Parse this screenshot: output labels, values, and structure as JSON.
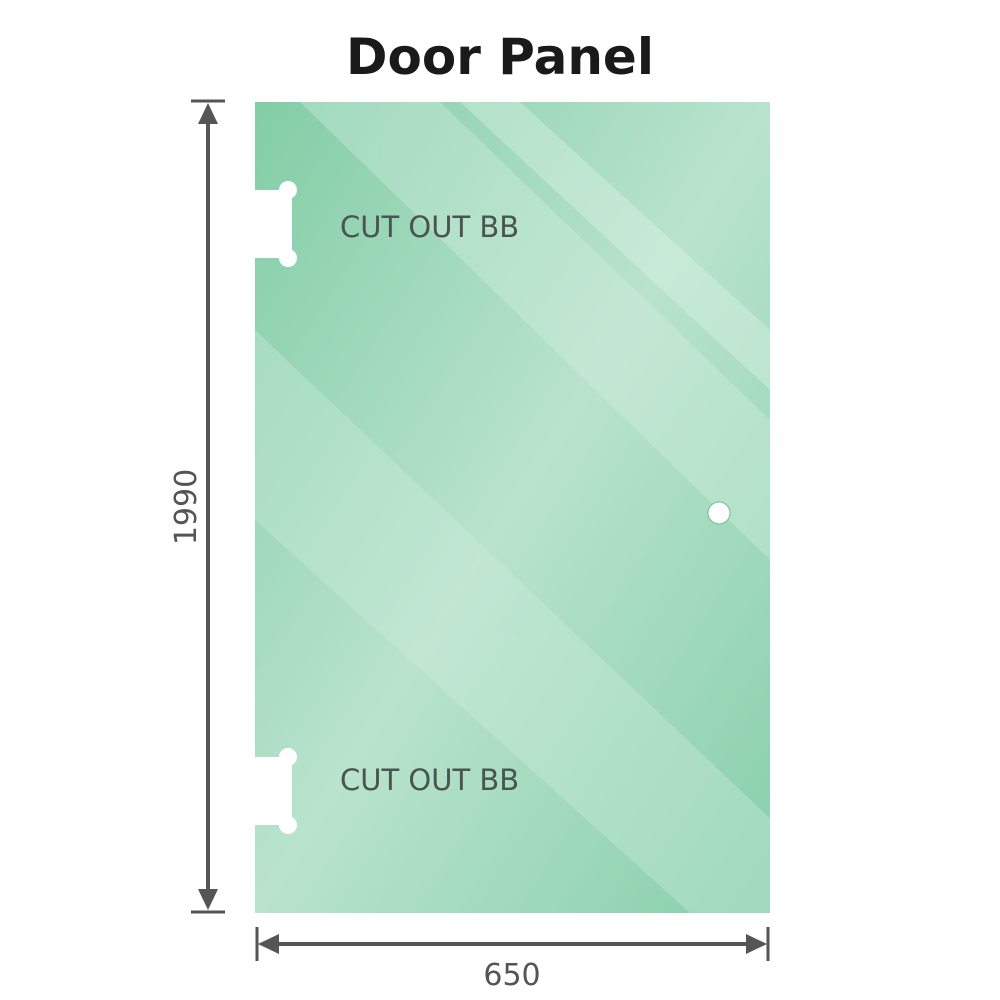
{
  "title": "Door Panel",
  "panel": {
    "color": "#86cfaa",
    "cutouts": [
      {
        "label": "CUT OUT BB"
      },
      {
        "label": "CUT OUT BB"
      }
    ],
    "hole_icon": "handle-hole"
  },
  "dimensions": {
    "height": "1990",
    "width": "650",
    "color": "#555555"
  }
}
